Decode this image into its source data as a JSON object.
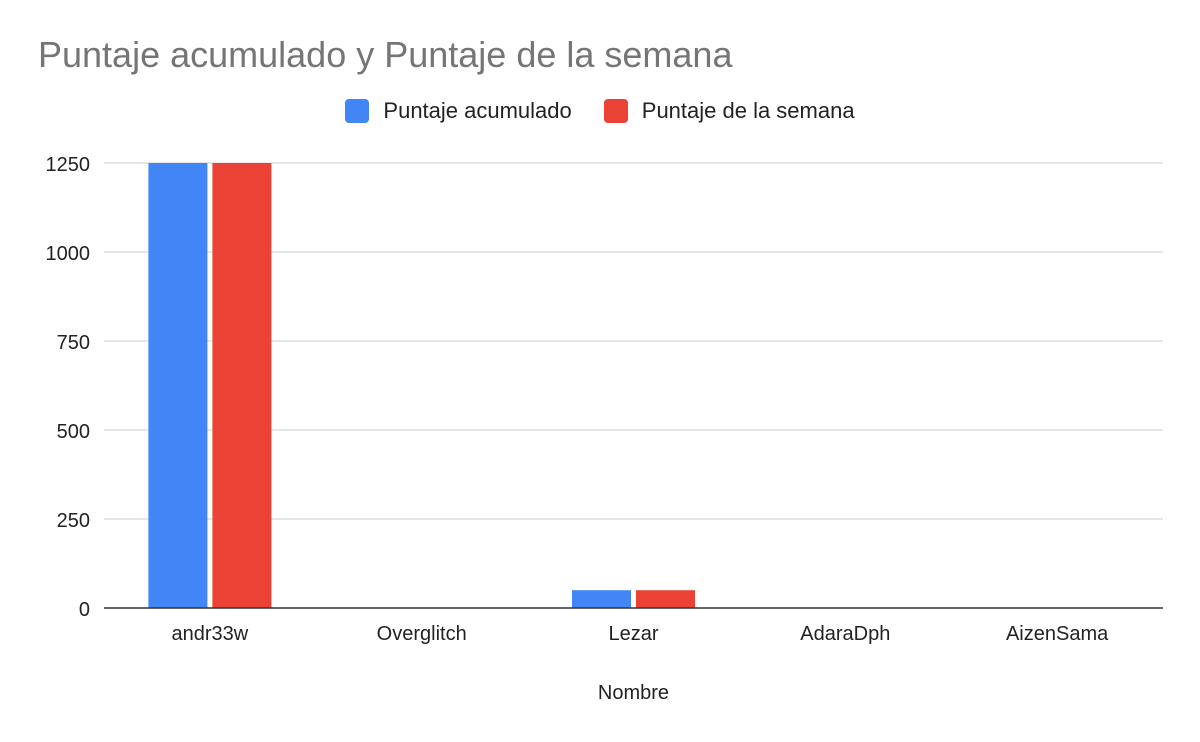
{
  "chart_data": {
    "type": "bar",
    "title": "Puntaje acumulado y Puntaje de la semana",
    "xlabel": "Nombre",
    "ylabel": "",
    "categories": [
      "andr33w",
      "Overglitch",
      "Lezar",
      "AdaraDph",
      "AizenSama"
    ],
    "series": [
      {
        "name": "Puntaje acumulado",
        "color": "#4285f4",
        "values": [
          1250,
          0,
          50,
          0,
          0
        ]
      },
      {
        "name": "Puntaje de la semana",
        "color": "#ea4335",
        "values": [
          1250,
          0,
          50,
          0,
          0
        ]
      }
    ],
    "ylim": [
      0,
      1250
    ],
    "yticks": [
      "0",
      "250",
      "500",
      "750",
      "1000",
      "1250"
    ],
    "grid": true,
    "legend_position": "top-center"
  }
}
